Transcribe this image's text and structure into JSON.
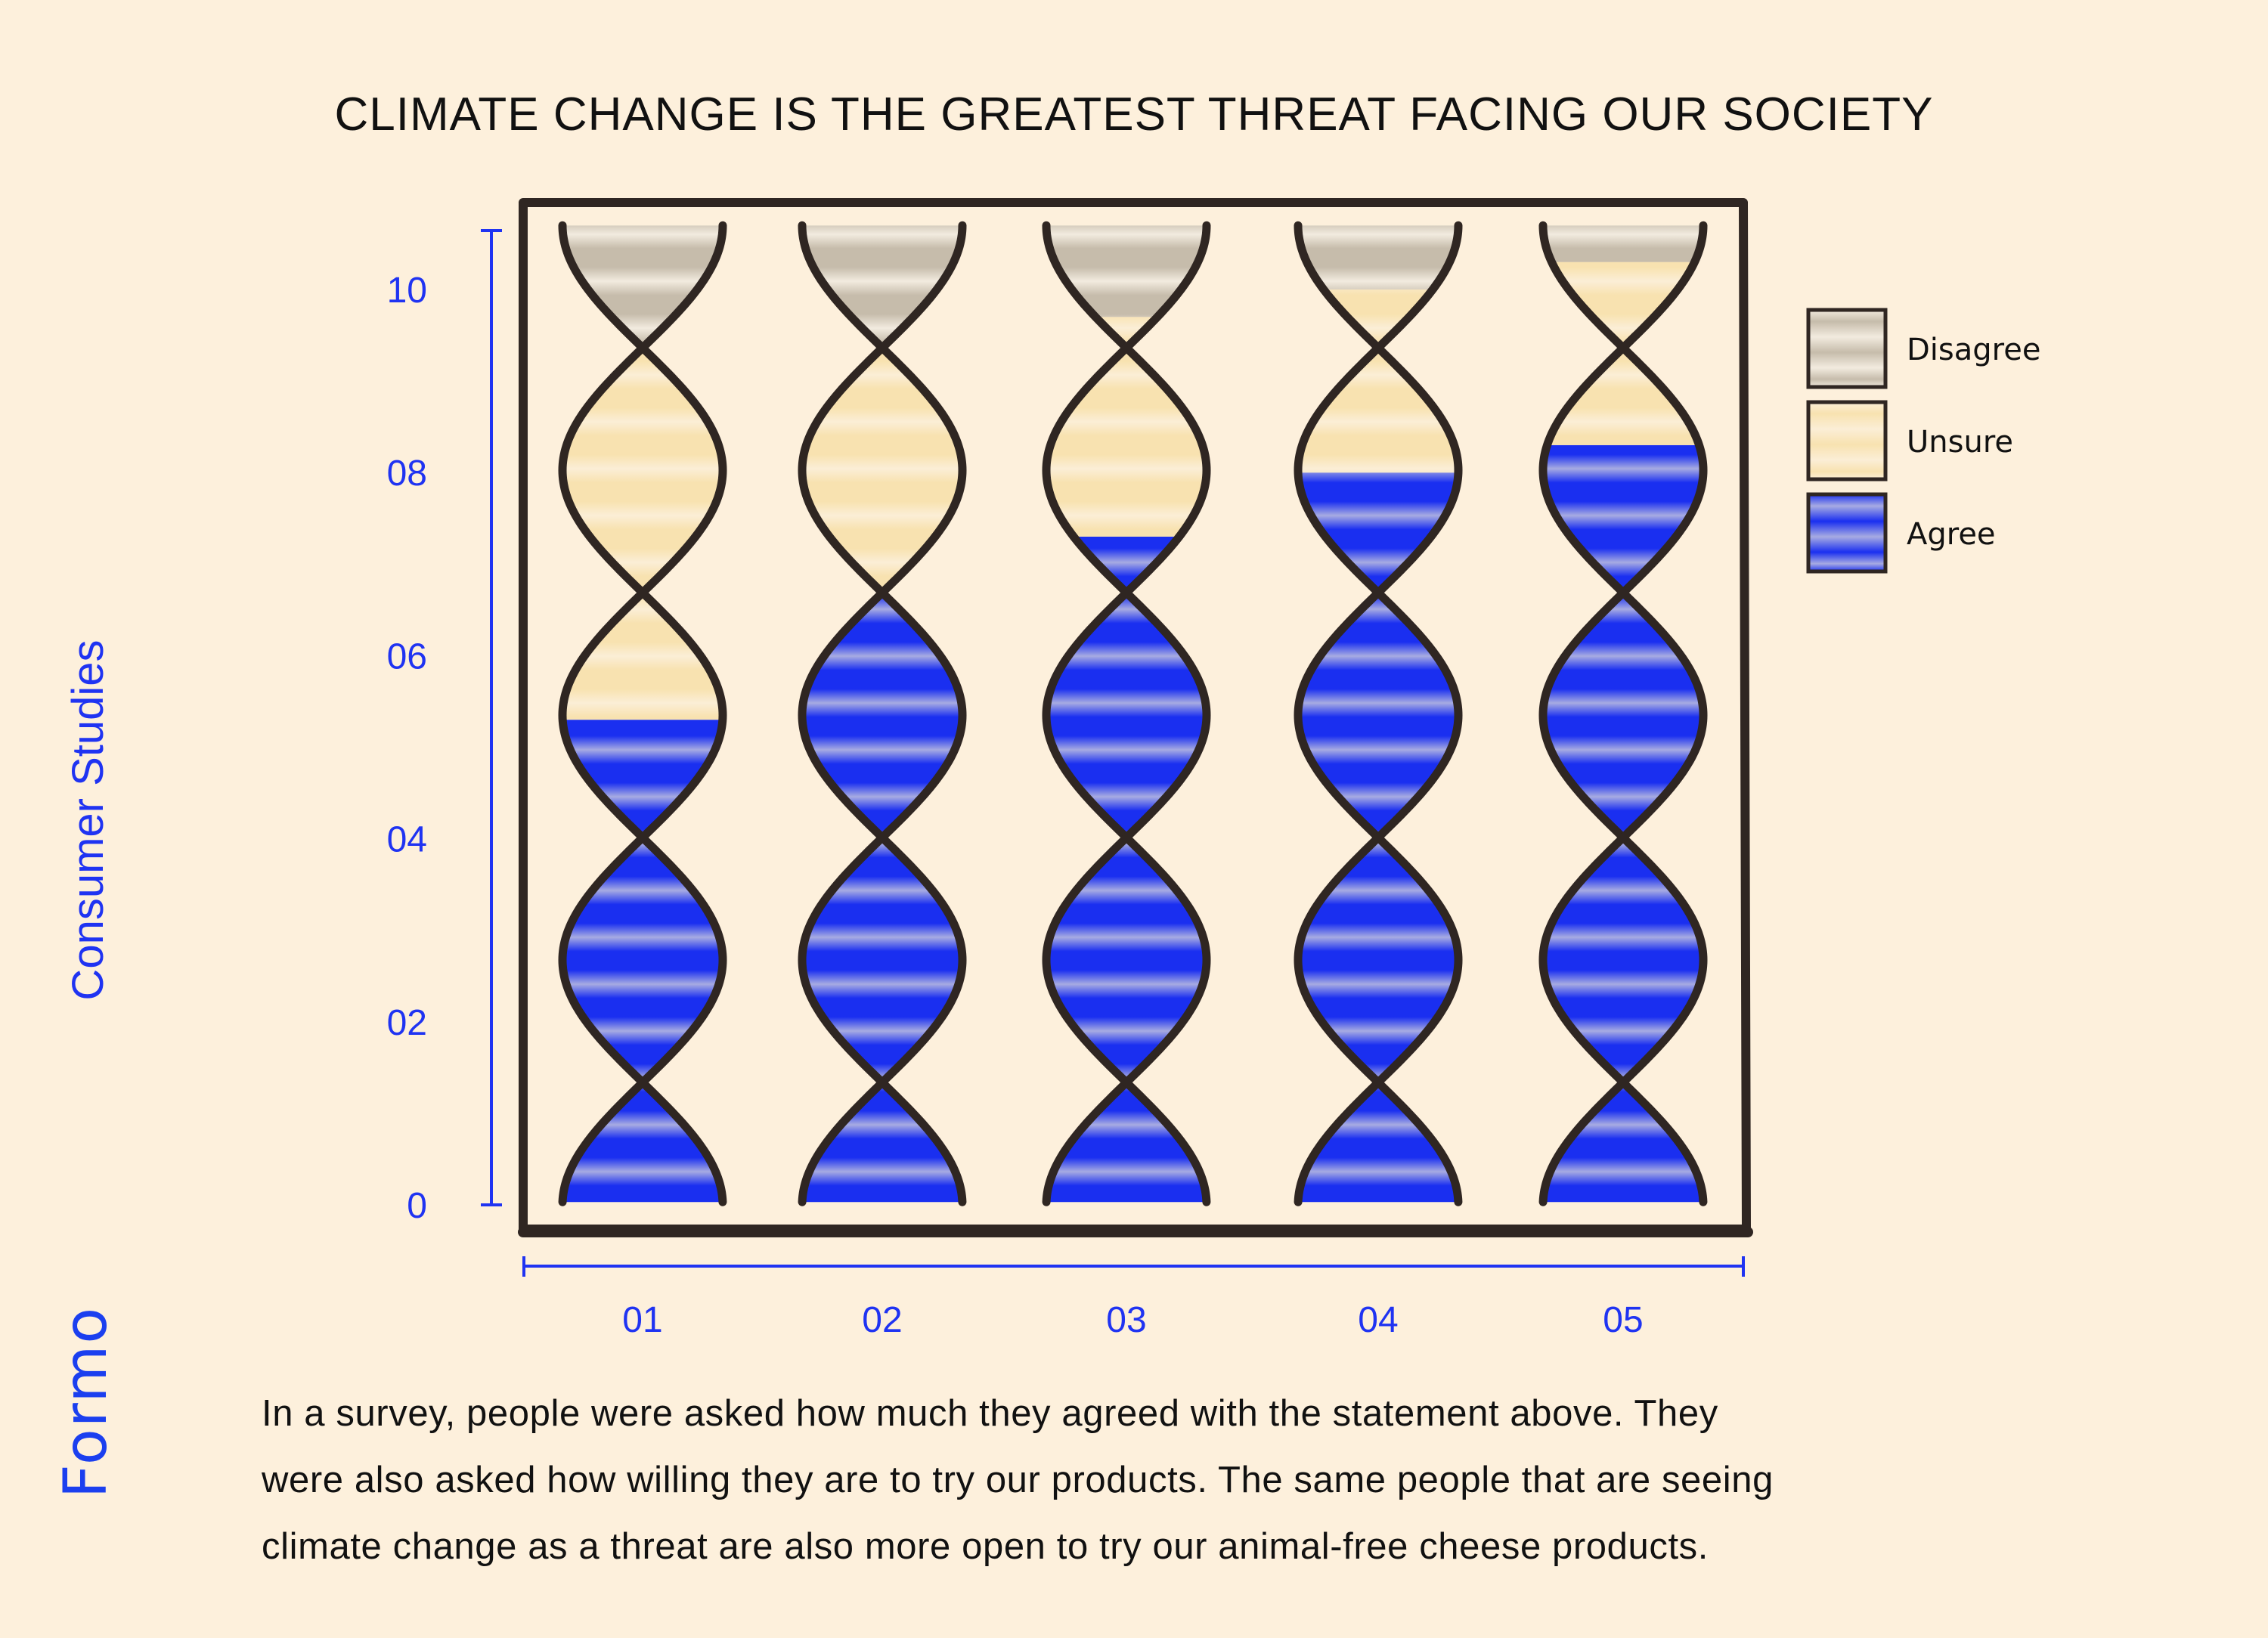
{
  "title": "CLIMATE CHANGE IS THE GREATEST THREAT FACING OUR SOCIETY",
  "brand": "Formo",
  "caption_lines": [
    "In a survey, people were asked how much they agreed with the statement above. They",
    "were also asked how willing they are to try our products. The same people that are seeing",
    "climate change as a threat are also more open to try our animal-free cheese products."
  ],
  "colors": {
    "background": "#fdf0dc",
    "frame": "#2f2622",
    "axis": "#1f33f2",
    "agree_dark": "#1a2ff0",
    "agree_light": "#a7abe2",
    "unsure_dark": "#f8e2b0",
    "unsure_light": "#fbeed6",
    "disagree_dark": "#c6bcab",
    "disagree_light": "#f2ebdf"
  },
  "chart_data": {
    "type": "bar",
    "subtype": "stacked, rendered as DNA double-helix columns",
    "title": "CLIMATE CHANGE IS THE GREATEST THREAT FACING OUR SOCIETY",
    "xlabel": "",
    "ylabel": "Consumer Studies",
    "categories": [
      "01",
      "02",
      "03",
      "04",
      "05"
    ],
    "y_ticks": [
      "0",
      "02",
      "04",
      "06",
      "08",
      "10"
    ],
    "y_tick_values": [
      0,
      2,
      4,
      6,
      8,
      10
    ],
    "ylim": [
      0,
      10.7
    ],
    "legend": {
      "position": "right",
      "entries": [
        "Disagree",
        "Unsure",
        "Agree"
      ]
    },
    "series": [
      {
        "name": "Agree",
        "key": "agree",
        "values": [
          5.3,
          6.7,
          7.3,
          8.0,
          8.3
        ]
      },
      {
        "name": "Unsure",
        "key": "unsure",
        "values": [
          4.0,
          2.6,
          2.4,
          2.0,
          2.0
        ]
      },
      {
        "name": "Disagree",
        "key": "disagree",
        "values": [
          1.4,
          1.4,
          1.0,
          0.7,
          0.4
        ]
      }
    ],
    "stack_total": 10.7,
    "grid": false
  }
}
